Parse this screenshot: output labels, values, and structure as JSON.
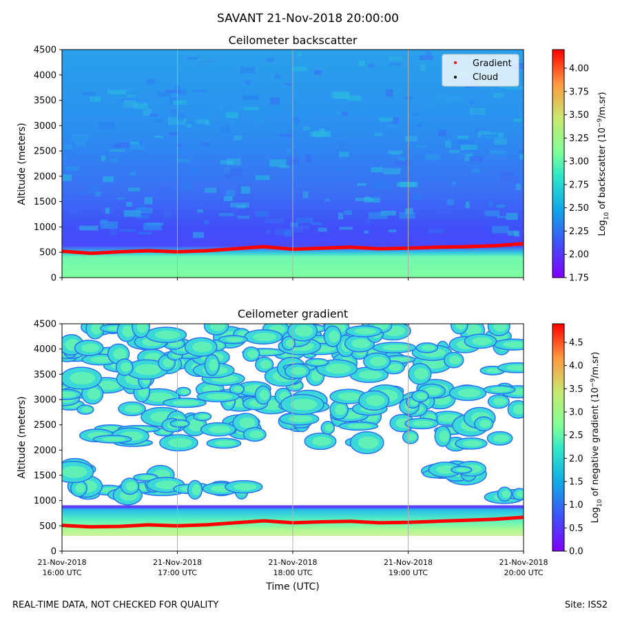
{
  "suptitle": "SAVANT 21-Nov-2018 20:00:00",
  "footer": {
    "left": "REAL-TIME DATA, NOT CHECKED FOR QUALITY",
    "right": "Site: ISS2"
  },
  "legend": {
    "items": [
      "Gradient",
      "Cloud"
    ],
    "placement": "upper-right",
    "colors": [
      "#ff0000",
      "#000000"
    ]
  },
  "chart_data": [
    {
      "type": "heatmap",
      "title": "Ceilometer backscatter",
      "ylabel": "Altitude (meters)",
      "xlabel": "",
      "ylim": [
        0,
        4500
      ],
      "yticks": [
        0,
        500,
        1000,
        1500,
        2000,
        2500,
        3000,
        3500,
        4000,
        4500
      ],
      "xlim": [
        0,
        4
      ],
      "xticks_hours": [
        0,
        1,
        2,
        3,
        4
      ],
      "colorbar": {
        "label": "Log10 of backscatter (10^-9/m.sr)",
        "label_main": "Log",
        "label_sub": "10",
        "label_mid": " of backscatter (10",
        "label_sup": "−9",
        "label_end": "/m.sr)",
        "vmin": 1.75,
        "vmax": 4.2,
        "ticks": [
          "1.75",
          "2.00",
          "2.25",
          "2.50",
          "2.75",
          "3.00",
          "3.25",
          "3.50",
          "3.75",
          "4.00"
        ]
      },
      "gradient_line": {
        "hours": [
          0,
          0.25,
          0.5,
          0.75,
          1.0,
          1.25,
          1.5,
          1.75,
          2.0,
          2.25,
          2.5,
          2.75,
          3.0,
          3.25,
          3.5,
          3.75,
          4.0
        ],
        "altitude": [
          520,
          480,
          510,
          530,
          510,
          530,
          570,
          610,
          560,
          580,
          600,
          570,
          580,
          600,
          610,
          630,
          670
        ]
      }
    },
    {
      "type": "heatmap",
      "title": "Ceilometer gradient",
      "ylabel": "Altitude (meters)",
      "xlabel": "Time (UTC)",
      "ylim": [
        0,
        4500
      ],
      "yticks": [
        0,
        500,
        1000,
        1500,
        2000,
        2500,
        3000,
        3500,
        4000,
        4500
      ],
      "xlim": [
        0,
        4
      ],
      "xticks": [
        {
          "date": "21-Nov-2018",
          "time": "16:00 UTC"
        },
        {
          "date": "21-Nov-2018",
          "time": "17:00 UTC"
        },
        {
          "date": "21-Nov-2018",
          "time": "18:00 UTC"
        },
        {
          "date": "21-Nov-2018",
          "time": "19:00 UTC"
        },
        {
          "date": "21-Nov-2018",
          "time": "20:00 UTC"
        }
      ],
      "colorbar": {
        "label": "Log10 of negative gradient (10^-9/m.sr)",
        "label_main": "Log",
        "label_sub": "10",
        "label_mid": " of negative gradient (10",
        "label_sup": "−9",
        "label_end": "/m.sr)",
        "vmin": 0.0,
        "vmax": 4.9,
        "ticks": [
          "0.0",
          "0.5",
          "1.0",
          "1.5",
          "2.0",
          "2.5",
          "3.0",
          "3.5",
          "4.0",
          "4.5"
        ]
      },
      "gradient_line": {
        "hours": [
          0,
          0.25,
          0.5,
          0.75,
          1.0,
          1.25,
          1.5,
          1.75,
          2.0,
          2.25,
          2.5,
          2.75,
          3.0,
          3.25,
          3.5,
          3.75,
          4.0
        ],
        "altitude": [
          510,
          480,
          490,
          520,
          500,
          520,
          560,
          600,
          560,
          580,
          590,
          560,
          570,
          590,
          610,
          630,
          670
        ]
      },
      "cloud_layers": [
        {
          "hours": [
            0.0,
            4.0
          ],
          "altitude": [
            300,
            880
          ],
          "kind": "boundary-layer"
        },
        {
          "hours": [
            0.1,
            0.9
          ],
          "altitude": [
            1100,
            1300
          ]
        },
        {
          "hours": [
            0.6,
            0.9
          ],
          "altitude": [
            1300,
            1650
          ]
        },
        {
          "hours": [
            1.0,
            1.6
          ],
          "altitude": [
            1200,
            1350
          ]
        },
        {
          "hours": [
            3.0,
            3.6
          ],
          "altitude": [
            1500,
            1650
          ]
        },
        {
          "hours": [
            3.8,
            4.0
          ],
          "altitude": [
            1050,
            1150
          ]
        },
        {
          "hours": [
            0.0,
            0.2
          ],
          "altitude": [
            1550,
            1750
          ]
        },
        {
          "hours": [
            0.3,
            3.8
          ],
          "altitude": [
            2100,
            2700
          ]
        },
        {
          "hours": [
            0.0,
            4.0
          ],
          "altitude": [
            2800,
            3300
          ]
        },
        {
          "hours": [
            0.0,
            4.0
          ],
          "altitude": [
            3400,
            3950
          ]
        },
        {
          "hours": [
            0.0,
            4.0
          ],
          "altitude": [
            4000,
            4500
          ]
        }
      ]
    }
  ]
}
